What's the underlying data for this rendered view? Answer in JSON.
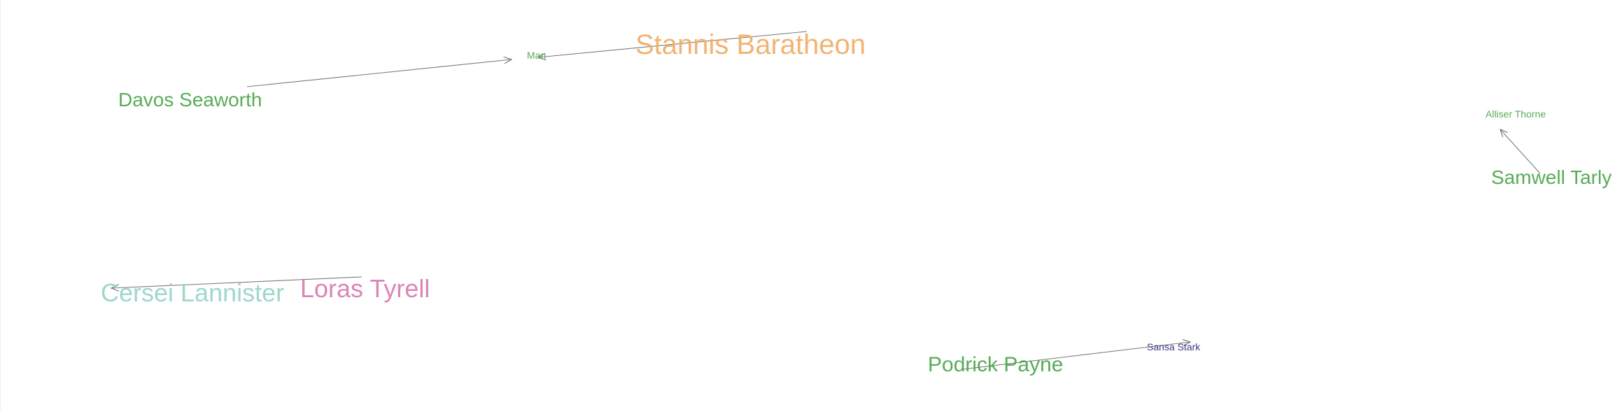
{
  "colors": {
    "green": "#4aa54a",
    "orange": "#f2ad66",
    "teal": "#99d4c7",
    "pink": "#d97bb0",
    "navy": "#2b2b7a",
    "edge": "#7a7a7a"
  },
  "nodes": [
    {
      "id": "stannis",
      "label": "Stannis Baratheon",
      "color": "orange"
    },
    {
      "id": "man",
      "label": "Man",
      "color": "green"
    },
    {
      "id": "davos",
      "label": "Davos Seaworth",
      "color": "green"
    },
    {
      "id": "alliser",
      "label": "Alliser Thorne",
      "color": "green"
    },
    {
      "id": "samwell",
      "label": "Samwell Tarly",
      "color": "green"
    },
    {
      "id": "cersei",
      "label": "Cersei Lannister",
      "color": "teal"
    },
    {
      "id": "loras",
      "label": "Loras Tyrell",
      "color": "pink"
    },
    {
      "id": "podrick",
      "label": "Podrick Payne",
      "color": "green"
    },
    {
      "id": "sansa",
      "label": "Sansa Stark",
      "color": "navy"
    }
  ],
  "edges": [
    {
      "source": "davos",
      "target": "man"
    },
    {
      "source": "stannis",
      "target": "man"
    },
    {
      "source": "samwell",
      "target": "alliser"
    },
    {
      "source": "loras",
      "target": "cersei"
    },
    {
      "source": "podrick",
      "target": "sansa"
    }
  ]
}
